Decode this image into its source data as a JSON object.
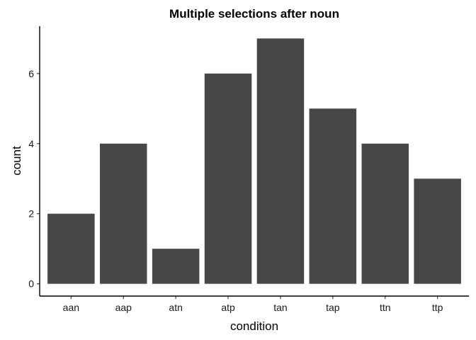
{
  "chart_data": {
    "type": "bar",
    "title": "Multiple selections after noun",
    "xlabel": "condition",
    "ylabel": "count",
    "categories": [
      "aan",
      "aap",
      "atn",
      "atp",
      "tan",
      "tap",
      "ttn",
      "ttp"
    ],
    "values": [
      2,
      4,
      1,
      6,
      7,
      5,
      4,
      3
    ],
    "yticks": [
      0,
      2,
      4,
      6
    ],
    "ylim": [
      -0.35,
      7.35
    ],
    "grid": false,
    "legend": "none",
    "bar_color": "#474747"
  }
}
